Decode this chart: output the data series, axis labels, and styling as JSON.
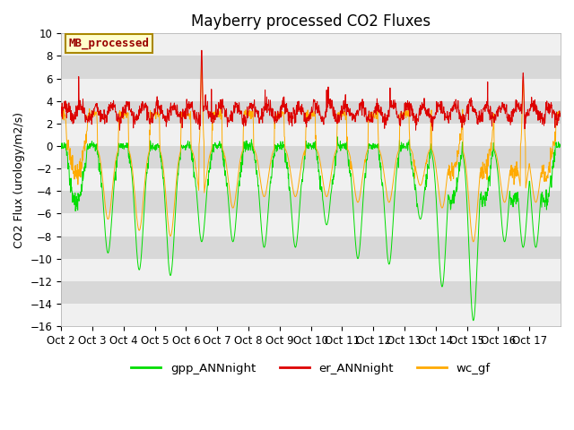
{
  "title": "Mayberry processed CO2 Fluxes",
  "ylabel": "CO2 Flux (urology/m2/s)",
  "ylim": [
    -16,
    10
  ],
  "yticks": [
    -16,
    -14,
    -12,
    -10,
    -8,
    -6,
    -4,
    -2,
    0,
    2,
    4,
    6,
    8,
    10
  ],
  "xlabel_dates": [
    "Oct 2",
    "Oct 3",
    "Oct 4",
    "Oct 5",
    "Oct 6",
    "Oct 7",
    "Oct 8",
    "Oct 9",
    "Oct 10",
    "Oct 11",
    "Oct 12",
    "Oct 13",
    "Oct 14",
    "Oct 15",
    "Oct 16",
    "Oct 17"
  ],
  "legend_label": "MB_processed",
  "line_labels": [
    "gpp_ANNnight",
    "er_ANNnight",
    "wc_gf"
  ],
  "colors": {
    "gpp": "#00dd00",
    "er": "#dd0000",
    "wc": "#ffaa00"
  },
  "bg_light": "#f0f0f0",
  "bg_dark": "#d8d8d8",
  "title_fontsize": 12,
  "label_fontsize": 9,
  "tick_fontsize": 8.5
}
